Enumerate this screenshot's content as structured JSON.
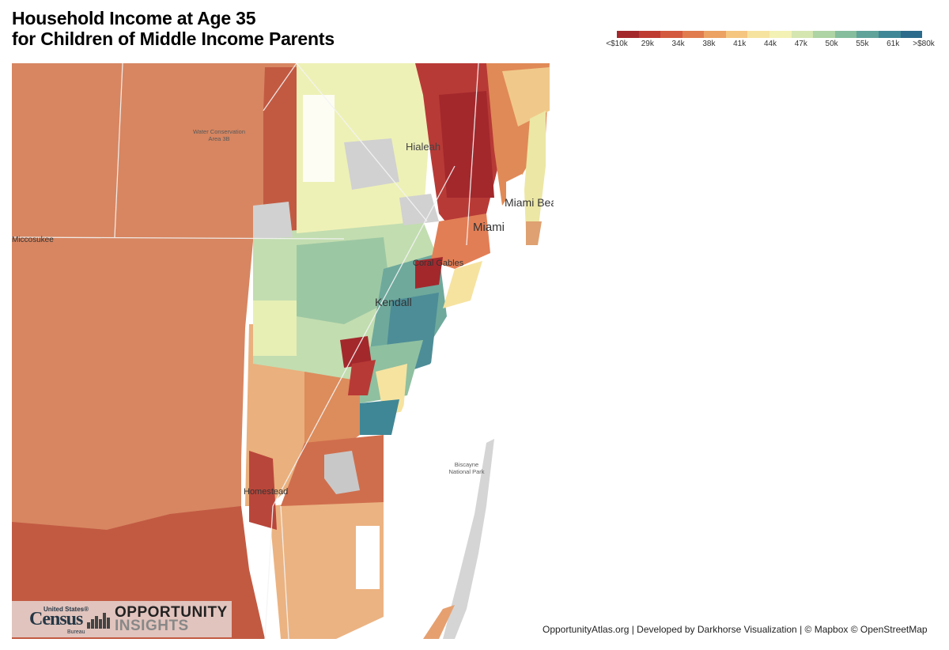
{
  "title": {
    "line1": "Household Income at Age 35",
    "line2": "for Children of Middle Income Parents"
  },
  "legend": {
    "ticks": [
      "<$10k",
      "29k",
      "34k",
      "38k",
      "41k",
      "44k",
      "47k",
      "50k",
      "55k",
      "61k",
      ">$80k"
    ],
    "colors": [
      "#a3282c",
      "#be3b32",
      "#d35a3e",
      "#e07c4e",
      "#eca263",
      "#f4c680",
      "#f6e3a0",
      "#f3f1b4",
      "#d5e6b0",
      "#aed3a4",
      "#85bd9d",
      "#5fa39a",
      "#3f8796",
      "#2c6b8b"
    ]
  },
  "map": {
    "labels": {
      "water_conservation_1": "Water Conservation",
      "water_conservation_2": "Area 3B",
      "miccosukee": "Miccosukee",
      "hialeah": "Hialeah",
      "miami_beach": "Miami Beach",
      "miami": "Miami",
      "coral_gables": "Coral Gables",
      "kendall": "Kendall",
      "biscayne_1": "Biscayne",
      "biscayne_2": "National Park",
      "homestead": "Homestead"
    }
  },
  "logos": {
    "census_us": "United States®",
    "census_word": "Census",
    "census_bureau": "Bureau",
    "oi_line1": "OPPORTUNITY",
    "oi_line2": "INSIGHTS"
  },
  "footer": "OpportunityAtlas.org | Developed by Darkhorse Visualization | © Mapbox © OpenStreetMap"
}
